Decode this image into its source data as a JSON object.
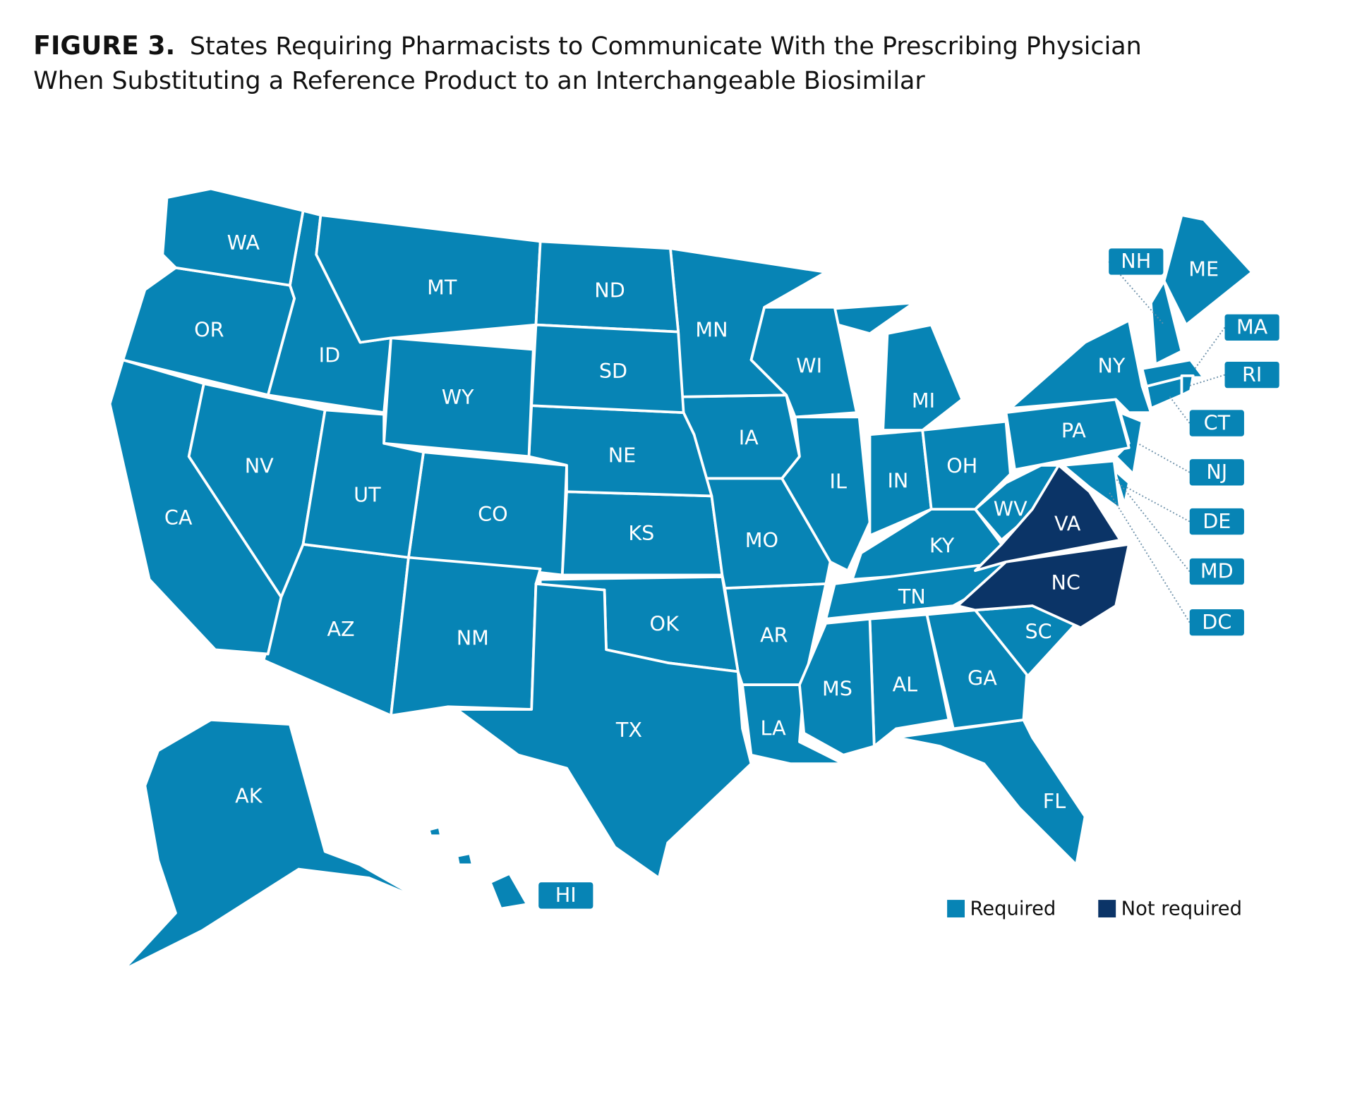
{
  "title": "FIGURE 3.",
  "subtitle": [
    "States Requiring Pharmacists to Communicate With the Prescribing Physician",
    "When Substituting a Reference Product to an Interchangeable Biosimilar"
  ],
  "legend": [
    {
      "label": "Required",
      "color": "#0784b5",
      "states": [
        "AK",
        "AL",
        "AR",
        "AZ",
        "CA",
        "CO",
        "CT",
        "DC",
        "DE",
        "FL",
        "GA",
        "HI",
        "IA",
        "ID",
        "IL",
        "IN",
        "KS",
        "KY",
        "LA",
        "MA",
        "MD",
        "ME",
        "MI",
        "MN",
        "MO",
        "MS",
        "MT",
        "ND",
        "NE",
        "NH",
        "NJ",
        "NM",
        "NV",
        "NY",
        "OH",
        "OK",
        "OR",
        "PA",
        "RI",
        "SC",
        "SD",
        "TN",
        "TX",
        "UT",
        "WA",
        "WI",
        "WV",
        "WY"
      ]
    },
    {
      "label": "Not required",
      "color": "#0b3467",
      "states": [
        "NC",
        "VA"
      ]
    }
  ]
}
